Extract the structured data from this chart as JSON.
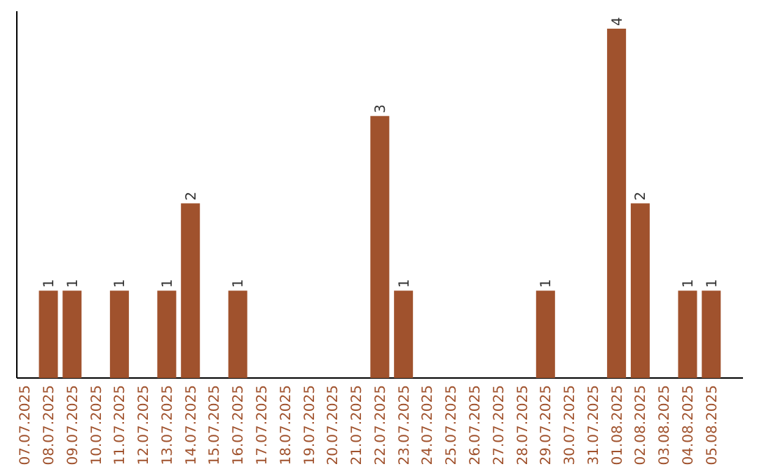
{
  "chart_data": {
    "type": "bar",
    "color": "#a0522d",
    "categories": [
      "07.07.2025",
      "08.07.2025",
      "09.07.2025",
      "10.07.2025",
      "11.07.2025",
      "12.07.2025",
      "13.07.2025",
      "14.07.2025",
      "15.07.2025",
      "16.07.2025",
      "17.07.2025",
      "18.07.2025",
      "19.07.2025",
      "20.07.2025",
      "21.07.2025",
      "22.07.2025",
      "23.07.2025",
      "24.07.2025",
      "25.07.2025",
      "26.07.2025",
      "27.07.2025",
      "28.07.2025",
      "29.07.2025",
      "30.07.2025",
      "31.07.2025",
      "01.08.2025",
      "02.08.2025",
      "03.08.2025",
      "04.08.2025",
      "05.08.2025"
    ],
    "values": [
      0,
      1,
      1,
      0,
      1,
      0,
      1,
      2,
      0,
      1,
      0,
      0,
      0,
      0,
      0,
      3,
      1,
      0,
      0,
      0,
      0,
      0,
      1,
      0,
      0,
      4,
      2,
      0,
      1,
      1
    ],
    "value_labels": [
      null,
      "1",
      "1",
      null,
      "1",
      null,
      "1",
      "2",
      null,
      "1",
      null,
      null,
      null,
      null,
      null,
      "3",
      "1",
      null,
      null,
      null,
      null,
      null,
      "1",
      null,
      null,
      "4",
      "2",
      null,
      "1",
      "1"
    ],
    "tick_labels": "x"
  }
}
